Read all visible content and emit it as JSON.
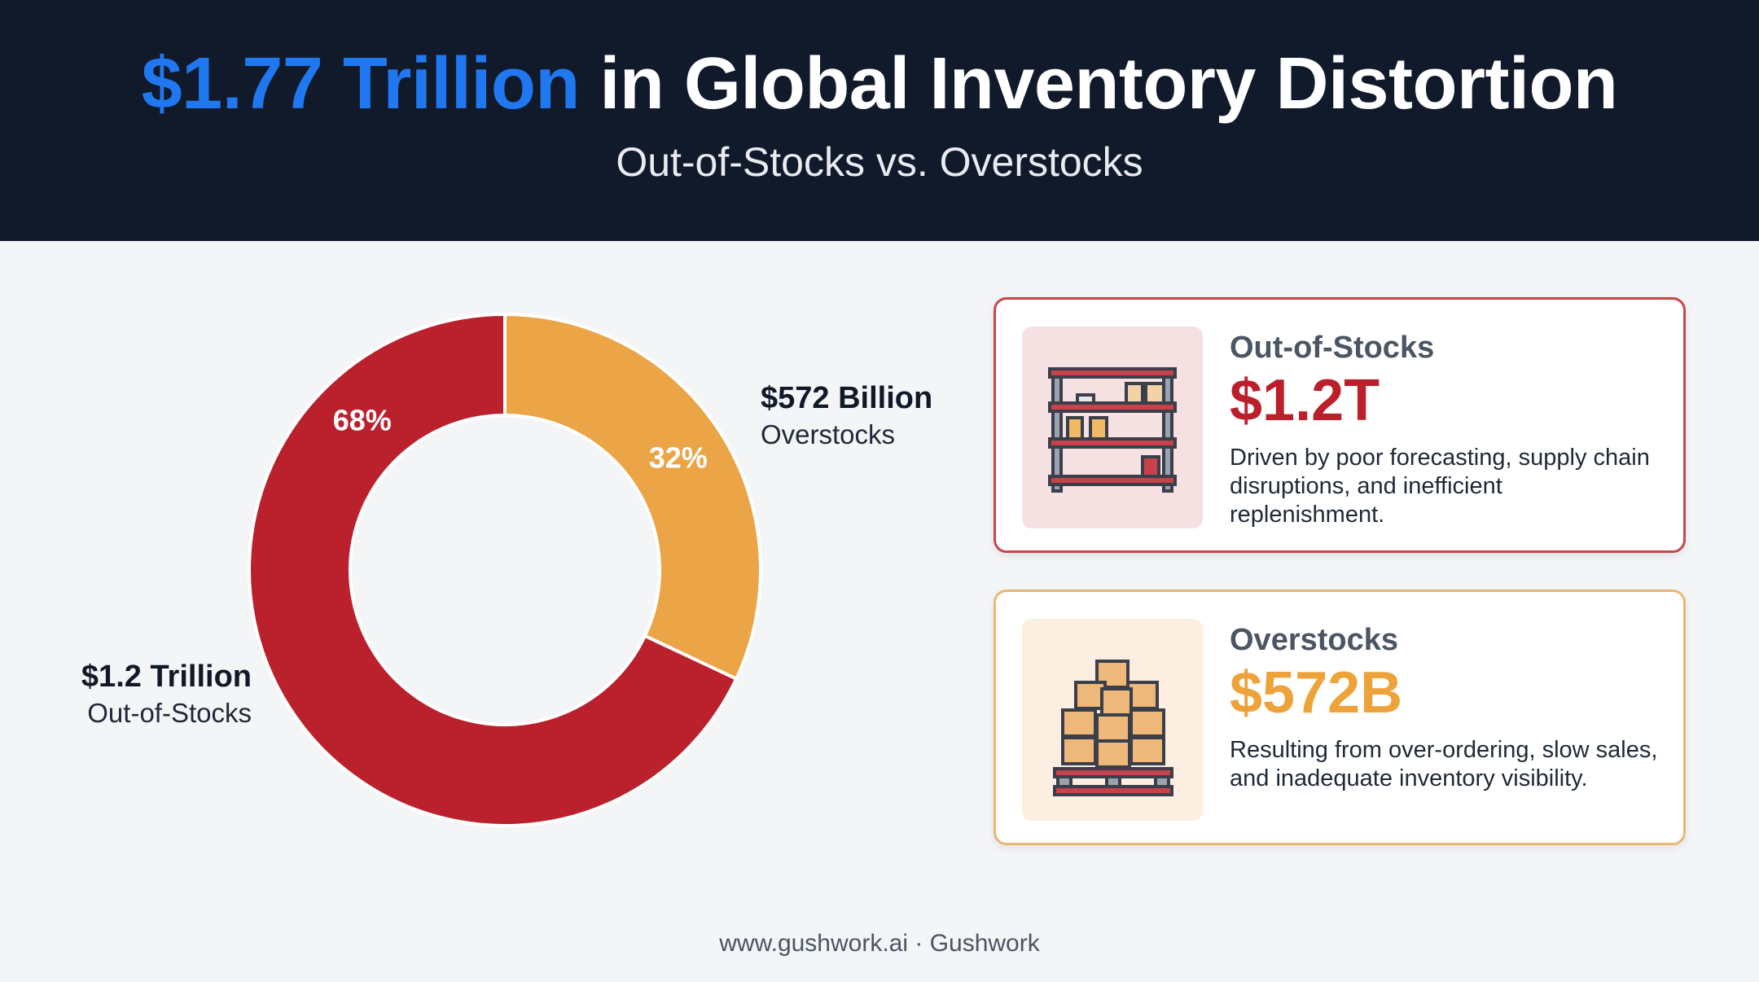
{
  "header": {
    "title_highlight": "$1.77 Trillion",
    "title_rest": "in Global Inventory Distortion",
    "subtitle": "Out-of-Stocks vs. Overstocks"
  },
  "chart_data": {
    "type": "pie",
    "donut": true,
    "slices": [
      {
        "name": "Overstocks",
        "value": 32,
        "label": "32%",
        "color": "#eba546"
      },
      {
        "name": "Out-of-Stocks",
        "value": 68,
        "label": "68%",
        "color": "#ba212d"
      }
    ],
    "callouts": {
      "overstocks": {
        "amount": "$572 Billion",
        "label": "Overstocks"
      },
      "outofstocks": {
        "amount": "$1.2 Trillion",
        "label": "Out-of-Stocks"
      }
    }
  },
  "cards": {
    "outofstocks": {
      "title": "Out-of-Stocks",
      "value": "$1.2T",
      "description": "Driven by poor forecasting, supply chain disruptions, and inefficient replenishment.",
      "icon": "empty-shelf-icon"
    },
    "overstocks": {
      "title": "Overstocks",
      "value": "$572B",
      "description": "Resulting from over-ordering, slow sales, and inadequate inventory visibility.",
      "icon": "box-pallet-icon"
    }
  },
  "footer": {
    "text": "www.gushwork.ai · Gushwork"
  }
}
